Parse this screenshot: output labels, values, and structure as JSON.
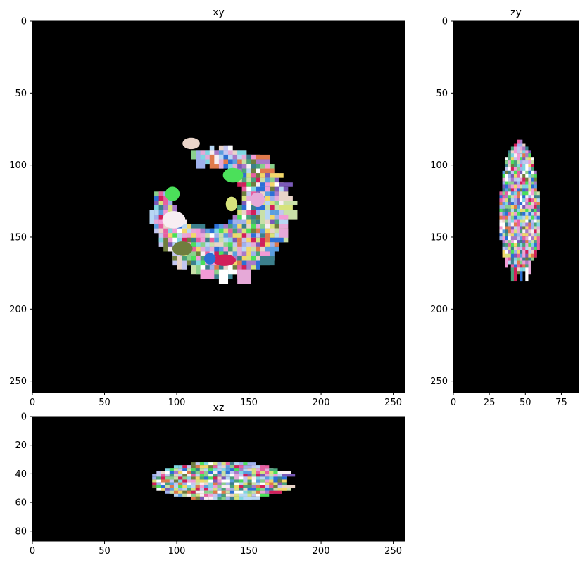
{
  "chart_data": [
    {
      "type": "heatmap",
      "title": "xy",
      "xlim": [
        0,
        258
      ],
      "ylim": [
        258,
        0
      ],
      "xticks": [
        0,
        50,
        100,
        150,
        200,
        250
      ],
      "yticks": [
        0,
        50,
        100,
        150,
        200,
        250
      ],
      "background_color": "#000000",
      "description": "segmentation label image, crescent shaped cluster of colored regions"
    },
    {
      "type": "heatmap",
      "title": "zy",
      "xlim": [
        0,
        87
      ],
      "ylim": [
        258,
        0
      ],
      "xticks": [
        0,
        25,
        50,
        75
      ],
      "yticks": [
        0,
        50,
        100,
        150,
        200,
        250
      ],
      "background_color": "#000000"
    },
    {
      "type": "heatmap",
      "title": "xz",
      "xlim": [
        0,
        258
      ],
      "ylim": [
        87,
        0
      ],
      "xticks": [
        0,
        50,
        100,
        150,
        200,
        250
      ],
      "yticks": [
        0,
        20,
        40,
        60,
        80
      ],
      "background_color": "#000000"
    }
  ],
  "segment_palette": [
    "#e9d4c9",
    "#4aa27a",
    "#f29bd6",
    "#7fd6e2",
    "#d7e37c",
    "#6f7e3e",
    "#2c6fd6",
    "#d21f5a",
    "#4be05a",
    "#a97ac9",
    "#f7eef2",
    "#e6a9d8",
    "#9fb1ec",
    "#5a9ee0",
    "#c9e0a8",
    "#e07a4c",
    "#7a5ab8",
    "#f2d86a",
    "#3b7f8c",
    "#c3c6f0",
    "#8ad08c",
    "#e85fa0",
    "#b7d7f4",
    "#ffffff"
  ]
}
